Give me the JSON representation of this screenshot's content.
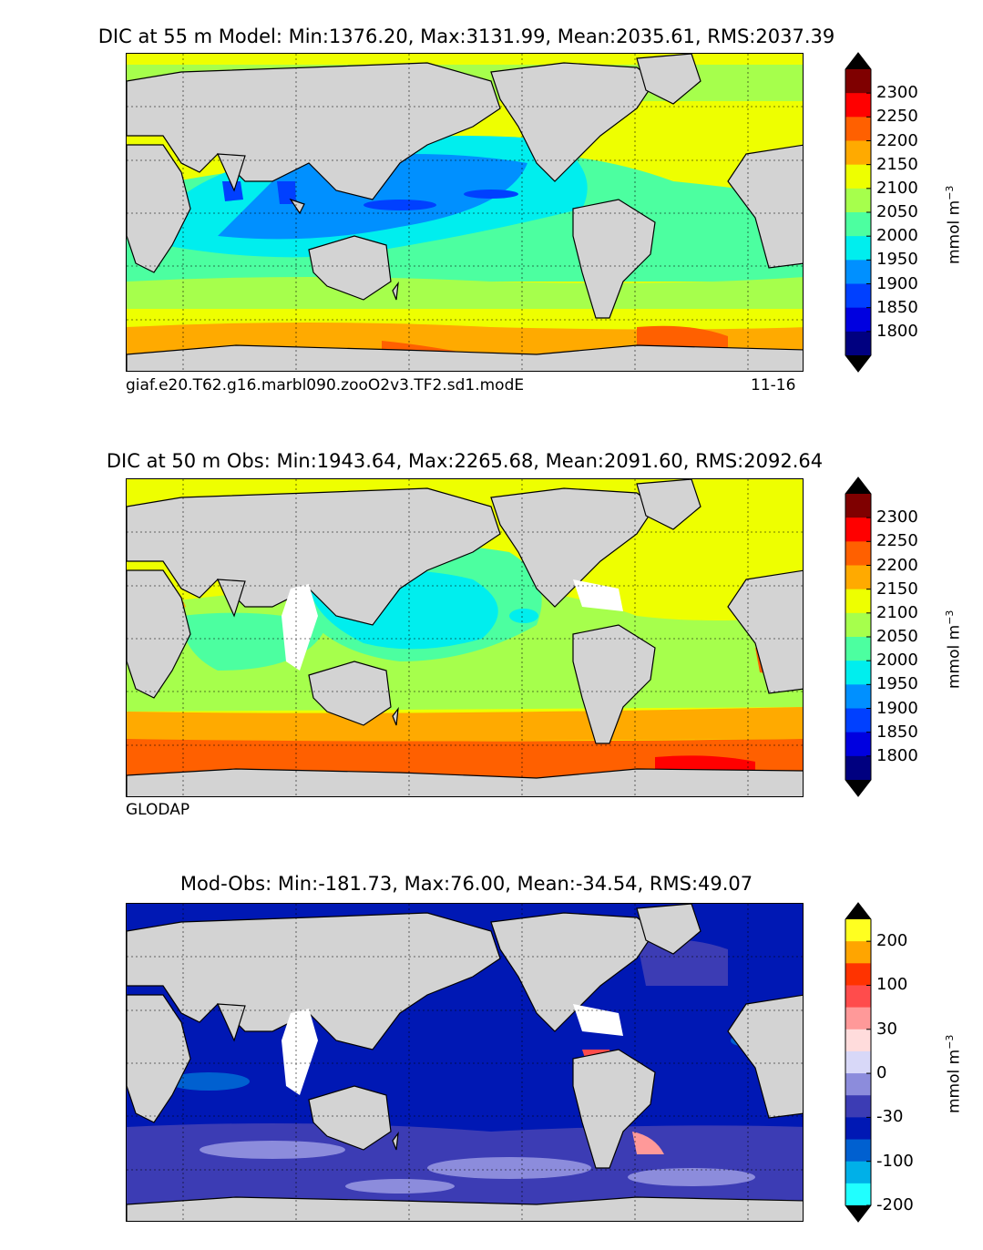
{
  "panels": [
    {
      "id": "model",
      "title": "DIC at 55 m Model: Min:1376.20, Max:3131.99, Mean:2035.61, RMS:2037.39",
      "caption_left": "giaf.e20.T62.g16.marbl090.zooO2v3.TF2.sd1.modE",
      "caption_right": "11-16",
      "colorbar": {
        "unit": "mmol m",
        "unit_exp": "−3",
        "ticks": [
          "2300",
          "2250",
          "2200",
          "2150",
          "2100",
          "2050",
          "2000",
          "1950",
          "1900",
          "1850",
          "1800"
        ],
        "colors": [
          "#7f0000",
          "#ff0000",
          "#ff6000",
          "#ffaa00",
          "#eeff00",
          "#a6ff4c",
          "#4cffa0",
          "#00eeee",
          "#0090ff",
          "#0040ff",
          "#0000e0",
          "#000080"
        ],
        "over_color": "#000000",
        "under_color": "#000000"
      }
    },
    {
      "id": "obs",
      "title": "DIC at 50 m Obs: Min:1943.64, Max:2265.68, Mean:2091.60, RMS:2092.64",
      "caption_left": "GLODAP",
      "caption_right": "",
      "colorbar": {
        "unit": "mmol m",
        "unit_exp": "−3",
        "ticks": [
          "2300",
          "2250",
          "2200",
          "2150",
          "2100",
          "2050",
          "2000",
          "1950",
          "1900",
          "1850",
          "1800"
        ],
        "colors": [
          "#7f0000",
          "#ff0000",
          "#ff6000",
          "#ffaa00",
          "#eeff00",
          "#a6ff4c",
          "#4cffa0",
          "#00eeee",
          "#0090ff",
          "#0040ff",
          "#0000e0",
          "#000080"
        ],
        "over_color": "#000000",
        "under_color": "#000000"
      }
    },
    {
      "id": "diff",
      "title": "Mod-Obs: Min:-181.73, Max:76.00, Mean:-34.54, RMS:49.07",
      "caption_left": "",
      "caption_right": "",
      "colorbar": {
        "unit": "mmol m",
        "unit_exp": "−3",
        "ticks": [
          "200",
          "100",
          "30",
          "0",
          "-30",
          "-100",
          "-200"
        ],
        "colors": [
          "#ffff20",
          "#ffa500",
          "#ff3300",
          "#ff4c4c",
          "#ff9999",
          "#ffdcdc",
          "#d8d8f8",
          "#8c8cdc",
          "#3c3cb4",
          "#0018b4",
          "#0060d0",
          "#00b0e8",
          "#20ffff"
        ],
        "over_color": "#000000",
        "under_color": "#000000"
      }
    }
  ],
  "land_color": "#d3d3d3",
  "missing_color": "#ffffff"
}
